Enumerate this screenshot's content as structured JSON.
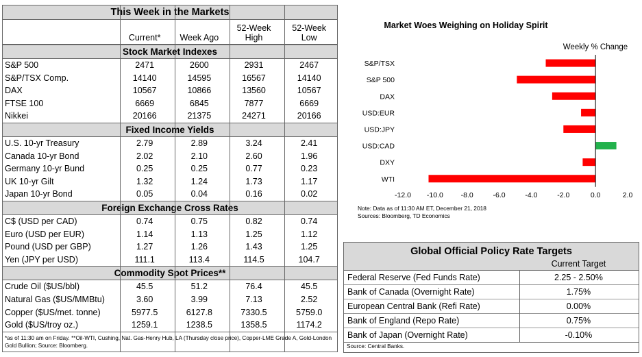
{
  "markets_table": {
    "title": "This Week in the Markets",
    "columns": [
      "Current*",
      "Week Ago",
      "52-Week\nHigh",
      "52-Week\nLow"
    ],
    "sections": [
      {
        "title": "Stock Market Indexes",
        "rows": [
          {
            "label": "S&P 500",
            "values": [
              "2471",
              "2600",
              "2931",
              "2467"
            ]
          },
          {
            "label": "S&P/TSX Comp.",
            "values": [
              "14140",
              "14595",
              "16567",
              "14140"
            ]
          },
          {
            "label": "DAX",
            "values": [
              "10567",
              "10866",
              "13560",
              "10567"
            ]
          },
          {
            "label": "FTSE 100",
            "values": [
              "6669",
              "6845",
              "7877",
              "6669"
            ]
          },
          {
            "label": "Nikkei",
            "values": [
              "20166",
              "21375",
              "24271",
              "20166"
            ]
          }
        ]
      },
      {
        "title": "Fixed Income Yields",
        "rows": [
          {
            "label": "U.S. 10-yr Treasury",
            "values": [
              "2.79",
              "2.89",
              "3.24",
              "2.41"
            ]
          },
          {
            "label": "Canada 10-yr Bond",
            "values": [
              "2.02",
              "2.10",
              "2.60",
              "1.96"
            ]
          },
          {
            "label": "Germany 10-yr Bund",
            "values": [
              "0.25",
              "0.25",
              "0.77",
              "0.23"
            ]
          },
          {
            "label": "UK 10-yr Gilt",
            "values": [
              "1.32",
              "1.24",
              "1.73",
              "1.17"
            ]
          },
          {
            "label": "Japan 10-yr Bond",
            "values": [
              "0.05",
              "0.04",
              "0.16",
              "0.02"
            ]
          }
        ]
      },
      {
        "title": "Foreign Exchange Cross Rates",
        "rows": [
          {
            "label": "C$ (USD per CAD)",
            "values": [
              "0.74",
              "0.75",
              "0.82",
              "0.74"
            ]
          },
          {
            "label": "Euro (USD per EUR)",
            "values": [
              "1.14",
              "1.13",
              "1.25",
              "1.12"
            ]
          },
          {
            "label": "Pound (USD per GBP)",
            "values": [
              "1.27",
              "1.26",
              "1.43",
              "1.25"
            ]
          },
          {
            "label": "Yen (JPY per USD)",
            "values": [
              "111.1",
              "113.4",
              "114.5",
              "104.7"
            ]
          }
        ]
      },
      {
        "title": "Commodity Spot Prices**",
        "rows": [
          {
            "label": "Crude Oil ($US/bbl)",
            "values": [
              "45.5",
              "51.2",
              "76.4",
              "45.5"
            ]
          },
          {
            "label": "Natural Gas ($US/MMBtu)",
            "values": [
              "3.60",
              "3.99",
              "7.13",
              "2.52"
            ]
          },
          {
            "label": "Copper ($US/met. tonne)",
            "values": [
              "5977.5",
              "6127.8",
              "7330.5",
              "5759.0"
            ]
          },
          {
            "label": "Gold ($US/troy oz.)",
            "values": [
              "1259.1",
              "1238.5",
              "1358.5",
              "1174.2"
            ]
          }
        ]
      }
    ],
    "footnote": "*as of 11:30 am on Friday. **Oil-WTI, Cushing, Nat. Gas-Henry Hub, LA (Thursday close price), Copper-LME Grade A, Gold-London Gold Bullion; Source: Bloomberg."
  },
  "chart_data": {
    "type": "bar",
    "orientation": "horizontal",
    "title": "Market Woes Weighing on Holiday Spirit",
    "legend_text": "Weekly % Change",
    "categories": [
      "S&P/TSX",
      "S&P 500",
      "DAX",
      "USD:EUR",
      "USD:JPY",
      "USD:CAD",
      "DXY",
      "WTI"
    ],
    "values": [
      -3.1,
      -4.9,
      -2.7,
      -0.9,
      -2.0,
      1.3,
      -0.8,
      -10.4
    ],
    "colors": [
      "#ff0000",
      "#ff0000",
      "#ff0000",
      "#ff0000",
      "#ff0000",
      "#22b14c",
      "#ff0000",
      "#ff0000"
    ],
    "xlim": [
      -12.0,
      2.0
    ],
    "xticks": [
      "-12.0",
      "-10.0",
      "-8.0",
      "-6.0",
      "-4.0",
      "-2.0",
      "0.0",
      "2.0"
    ],
    "xtick_values": [
      -12,
      -10,
      -8,
      -6,
      -4,
      -2,
      0,
      2
    ],
    "note": "Note: Data as of  11:30 AM  ET,  December 21, 2018",
    "source": "Sources: Bloomberg, TD Economics"
  },
  "policy_table": {
    "title": "Global Official Policy Rate Targets",
    "col_header": "Current Target",
    "rows": [
      {
        "label": "Federal Reserve (Fed Funds Rate)",
        "value": "2.25 - 2.50%"
      },
      {
        "label": "Bank of Canada (Overnight Rate)",
        "value": "1.75%"
      },
      {
        "label": "European Central Bank (Refi Rate)",
        "value": "0.00%"
      },
      {
        "label": "Bank of England (Repo Rate)",
        "value": "0.75%"
      },
      {
        "label": "Bank of Japan (Overnight Rate)",
        "value": "-0.10%"
      }
    ],
    "source": "Source: Central Banks."
  }
}
